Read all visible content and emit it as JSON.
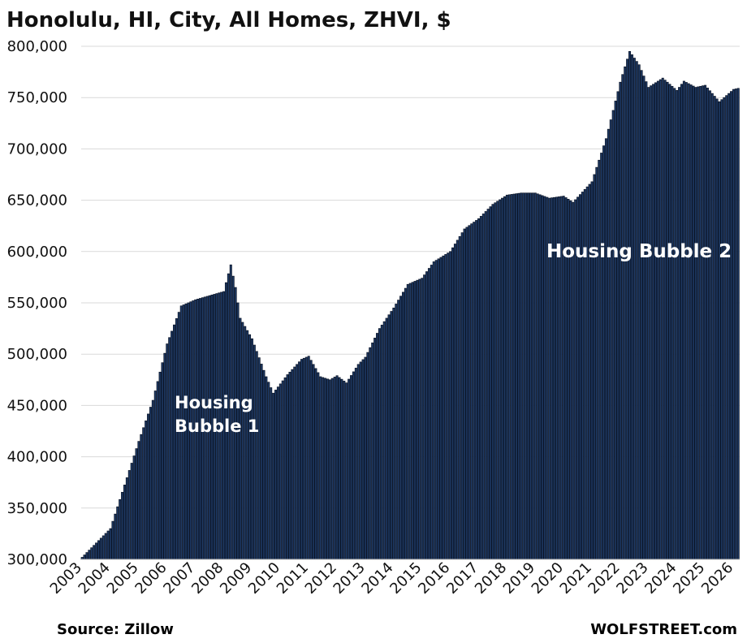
{
  "chart_data": {
    "type": "bar",
    "title": "Honolulu, HI, City,  All Homes, ZHVI, $",
    "xlabel": "",
    "ylabel": "",
    "ylim": [
      300000,
      800000
    ],
    "yticks": [
      "300,000",
      "350,000",
      "400,000",
      "450,000",
      "500,000",
      "550,000",
      "600,000",
      "650,000",
      "700,000",
      "750,000",
      "800,000"
    ],
    "year_labels": [
      "2003",
      "2004",
      "2005",
      "2006",
      "2007",
      "2008",
      "2009",
      "2010",
      "2011",
      "2012",
      "2013",
      "2014",
      "2015",
      "2016",
      "2017",
      "2018",
      "2019",
      "2020",
      "2021",
      "2022",
      "2023",
      "2024",
      "2025",
      "2026"
    ],
    "grid": true,
    "legend": "none",
    "bar_color": "#1e3963",
    "x_start": "2003-01",
    "frequency": "monthly",
    "anchors": [
      [
        "2003-01",
        302000
      ],
      [
        "2004-01",
        330000
      ],
      [
        "2005-01",
        415000
      ],
      [
        "2005-07",
        455000
      ],
      [
        "2006-01",
        510000
      ],
      [
        "2006-07",
        547000
      ],
      [
        "2007-01",
        553000
      ],
      [
        "2007-07",
        557000
      ],
      [
        "2008-01",
        561000
      ],
      [
        "2008-04",
        587000
      ],
      [
        "2008-06",
        565000
      ],
      [
        "2008-08",
        535000
      ],
      [
        "2009-01",
        515000
      ],
      [
        "2009-07",
        478000
      ],
      [
        "2009-10",
        462000
      ],
      [
        "2010-04",
        480000
      ],
      [
        "2010-10",
        495000
      ],
      [
        "2011-01",
        498000
      ],
      [
        "2011-06",
        478000
      ],
      [
        "2011-10",
        475000
      ],
      [
        "2012-01",
        479000
      ],
      [
        "2012-05",
        472000
      ],
      [
        "2012-10",
        490000
      ],
      [
        "2013-01",
        497000
      ],
      [
        "2013-07",
        525000
      ],
      [
        "2014-01",
        545000
      ],
      [
        "2014-07",
        568000
      ],
      [
        "2015-01",
        574000
      ],
      [
        "2015-06",
        590000
      ],
      [
        "2016-01",
        600000
      ],
      [
        "2016-07",
        622000
      ],
      [
        "2017-01",
        632000
      ],
      [
        "2017-07",
        646000
      ],
      [
        "2018-01",
        655000
      ],
      [
        "2018-07",
        657000
      ],
      [
        "2019-01",
        657000
      ],
      [
        "2019-07",
        652000
      ],
      [
        "2020-01",
        654000
      ],
      [
        "2020-05",
        648000
      ],
      [
        "2021-01",
        668000
      ],
      [
        "2021-07",
        710000
      ],
      [
        "2022-01",
        765000
      ],
      [
        "2022-05",
        795000
      ],
      [
        "2022-09",
        782000
      ],
      [
        "2023-01",
        760000
      ],
      [
        "2023-07",
        769000
      ],
      [
        "2024-01",
        757000
      ],
      [
        "2024-04",
        766000
      ],
      [
        "2024-09",
        760000
      ],
      [
        "2025-01",
        762000
      ],
      [
        "2025-07",
        746000
      ],
      [
        "2026-01",
        758000
      ],
      [
        "2026-03",
        759000
      ]
    ],
    "annotations": [
      {
        "text": "Housing",
        "id": "bubble1_line1"
      },
      {
        "text": "Bubble 1",
        "id": "bubble1_line2"
      },
      {
        "text": "Housing Bubble 2",
        "id": "bubble2"
      }
    ]
  },
  "footer": {
    "source": "Source: Zillow",
    "brand": "WOLFSTREET.com"
  }
}
